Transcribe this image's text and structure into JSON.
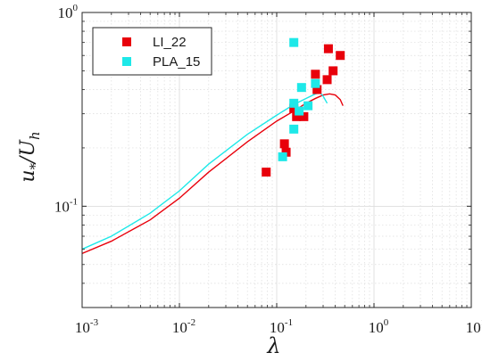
{
  "chart_data": {
    "type": "scatter",
    "xscale": "log",
    "yscale": "log",
    "xlim": [
      0.001,
      10
    ],
    "ylim": [
      0.03,
      1
    ],
    "xlabel": "λ",
    "ylabel": "u*/Uh",
    "x_ticks": [
      {
        "value": 0.001,
        "base": "10",
        "exp": "-3"
      },
      {
        "value": 0.01,
        "base": "10",
        "exp": "-2"
      },
      {
        "value": 0.1,
        "base": "10",
        "exp": "-1"
      },
      {
        "value": 1,
        "base": "10",
        "exp": "0"
      },
      {
        "value": 10,
        "base": "10",
        "exp": "1"
      }
    ],
    "y_ticks": [
      {
        "value": 0.1,
        "base": "10",
        "exp": "-1"
      },
      {
        "value": 1,
        "base": "10",
        "exp": "0"
      }
    ],
    "grid": true,
    "legend_position": "top-left",
    "series": [
      {
        "name": "LI_22",
        "color": "#e8000b",
        "marker": "square",
        "points": [
          {
            "x": 0.078,
            "y": 0.15
          },
          {
            "x": 0.12,
            "y": 0.21
          },
          {
            "x": 0.125,
            "y": 0.19
          },
          {
            "x": 0.15,
            "y": 0.32
          },
          {
            "x": 0.16,
            "y": 0.29
          },
          {
            "x": 0.19,
            "y": 0.29
          },
          {
            "x": 0.25,
            "y": 0.48
          },
          {
            "x": 0.26,
            "y": 0.4
          },
          {
            "x": 0.33,
            "y": 0.45
          },
          {
            "x": 0.34,
            "y": 0.65
          },
          {
            "x": 0.38,
            "y": 0.5
          },
          {
            "x": 0.45,
            "y": 0.6
          }
        ],
        "curve": [
          {
            "x": 0.001,
            "y": 0.057
          },
          {
            "x": 0.002,
            "y": 0.066
          },
          {
            "x": 0.005,
            "y": 0.085
          },
          {
            "x": 0.01,
            "y": 0.11
          },
          {
            "x": 0.02,
            "y": 0.15
          },
          {
            "x": 0.05,
            "y": 0.215
          },
          {
            "x": 0.1,
            "y": 0.275
          },
          {
            "x": 0.15,
            "y": 0.31
          },
          {
            "x": 0.2,
            "y": 0.34
          },
          {
            "x": 0.25,
            "y": 0.36
          },
          {
            "x": 0.3,
            "y": 0.375
          },
          {
            "x": 0.35,
            "y": 0.38
          },
          {
            "x": 0.4,
            "y": 0.375
          },
          {
            "x": 0.45,
            "y": 0.355
          },
          {
            "x": 0.48,
            "y": 0.33
          }
        ]
      },
      {
        "name": "PLA_15",
        "color": "#1ee8e8",
        "marker": "square",
        "points": [
          {
            "x": 0.115,
            "y": 0.18
          },
          {
            "x": 0.15,
            "y": 0.7
          },
          {
            "x": 0.15,
            "y": 0.34
          },
          {
            "x": 0.15,
            "y": 0.25
          },
          {
            "x": 0.17,
            "y": 0.31
          },
          {
            "x": 0.18,
            "y": 0.41
          },
          {
            "x": 0.21,
            "y": 0.33
          },
          {
            "x": 0.25,
            "y": 0.43
          }
        ],
        "curve": [
          {
            "x": 0.001,
            "y": 0.06
          },
          {
            "x": 0.002,
            "y": 0.07
          },
          {
            "x": 0.005,
            "y": 0.092
          },
          {
            "x": 0.01,
            "y": 0.12
          },
          {
            "x": 0.02,
            "y": 0.165
          },
          {
            "x": 0.05,
            "y": 0.235
          },
          {
            "x": 0.1,
            "y": 0.295
          },
          {
            "x": 0.15,
            "y": 0.335
          },
          {
            "x": 0.2,
            "y": 0.36
          },
          {
            "x": 0.25,
            "y": 0.38
          },
          {
            "x": 0.28,
            "y": 0.385
          },
          {
            "x": 0.3,
            "y": 0.37
          },
          {
            "x": 0.33,
            "y": 0.34
          }
        ]
      }
    ]
  }
}
